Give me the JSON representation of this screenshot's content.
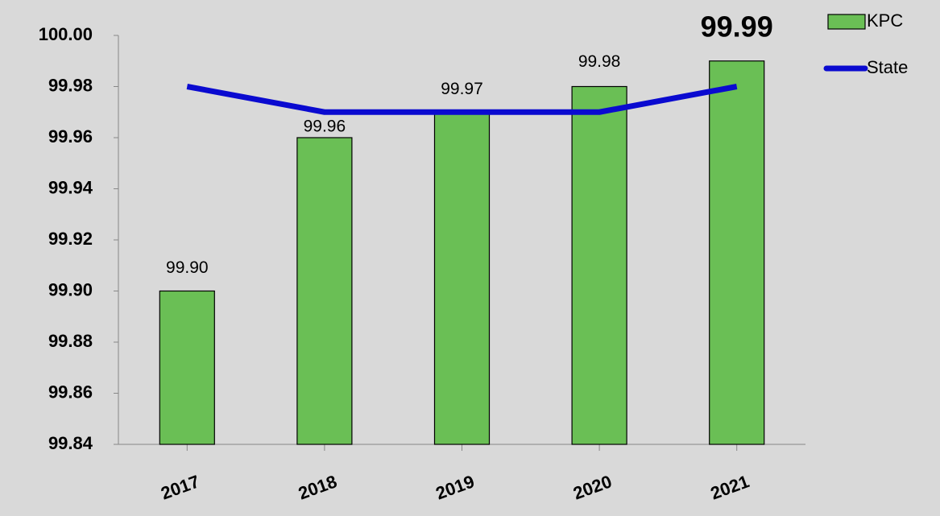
{
  "chart_data": {
    "type": "bar",
    "categories": [
      "2017",
      "2018",
      "2019",
      "2020",
      "2021"
    ],
    "series": [
      {
        "name": "KPC",
        "type": "bar",
        "color": "#6abf55",
        "values": [
          99.9,
          99.96,
          99.97,
          99.98,
          99.99
        ],
        "value_labels": [
          "99.90",
          "99.96",
          "99.97",
          "99.98",
          "99.99"
        ]
      },
      {
        "name": "State",
        "type": "line",
        "color": "#0a0ad0",
        "values": [
          99.98,
          99.97,
          99.97,
          99.97,
          99.98
        ]
      }
    ],
    "ylim": [
      99.84,
      100.0
    ],
    "yticks": [
      99.84,
      99.86,
      99.88,
      {
        "value": 99.9,
        "label": "99.90"
      },
      99.92,
      99.94,
      99.96,
      99.98,
      {
        "value": 100.0,
        "label": "100.00"
      }
    ],
    "grid": false,
    "legend": "top-right"
  }
}
